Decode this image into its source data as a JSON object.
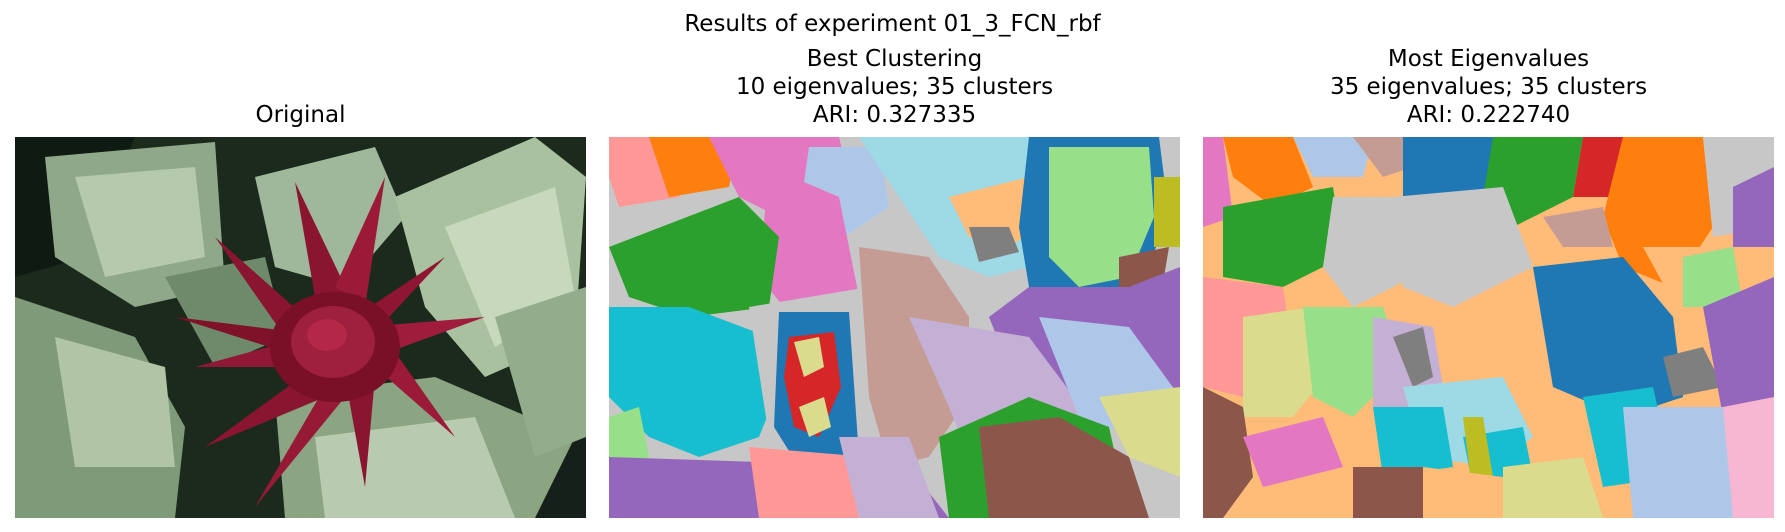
{
  "figure": {
    "suptitle": "Results of experiment 01_3_FCN_rbf"
  },
  "panels": [
    {
      "title_lines": [
        "Original"
      ],
      "image_description_icon": "bromeliad-flower-photo"
    },
    {
      "title_lines": [
        "Best Clustering",
        "10 eigenvalues; 35 clusters",
        "ARI: 0.327335"
      ],
      "eigenvalues": 10,
      "clusters": 35,
      "ari": 0.327335,
      "image_description_icon": "segmentation-map"
    },
    {
      "title_lines": [
        "Most Eigenvalues",
        "35 eigenvalues; 35 clusters",
        "ARI: 0.222740"
      ],
      "eigenvalues": 35,
      "clusters": 35,
      "ari": 0.22274,
      "image_description_icon": "segmentation-map"
    }
  ],
  "colors": {
    "tab_blue": "#1f77b4",
    "tab_orange": "#ff7f0e",
    "tab_green": "#2ca02c",
    "tab_red": "#d62728",
    "tab_purple": "#9467bd",
    "tab_brown": "#8c564b",
    "tab_pink": "#e377c2",
    "tab_gray": "#c7c7c7",
    "tab_olive": "#bcbd22",
    "tab_cyan": "#17becf",
    "light_orange": "#ffbb78",
    "light_green": "#98df8a",
    "light_blue": "#aec7e8",
    "light_pink": "#ff9896",
    "light_purple": "#c5b0d5",
    "light_brown": "#c49c94",
    "light_cyan": "#9edae5",
    "khaki": "#dbdb8d"
  }
}
